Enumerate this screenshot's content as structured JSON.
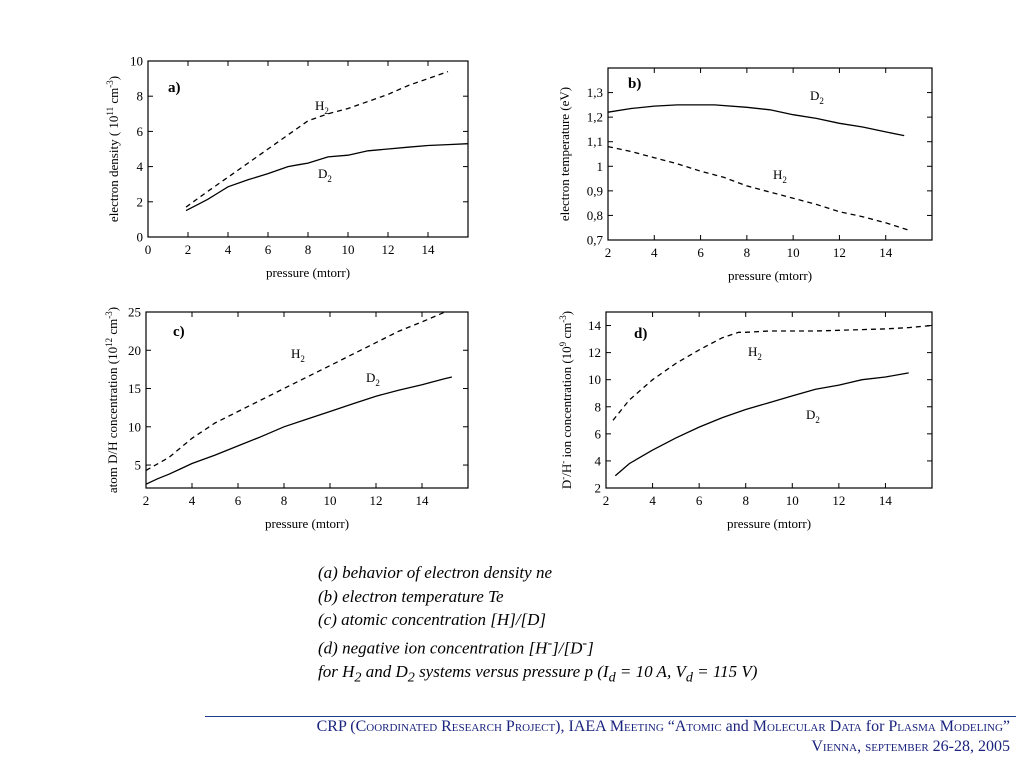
{
  "chart_data": [
    {
      "type": "line",
      "panel_label": "a)",
      "xlabel": "pressure (mtorr)",
      "ylabel": "electron density ( 10 11 cm -3 )",
      "ylabel_parts": {
        "text": "electron density ( 10",
        "exp1": "11",
        "unit": " cm",
        "exp2": "-3",
        "close": ")"
      },
      "xlim": [
        0,
        16
      ],
      "ylim": [
        0,
        10
      ],
      "xticks": [
        0,
        2,
        4,
        6,
        8,
        10,
        12,
        14
      ],
      "yticks": [
        0,
        2,
        4,
        6,
        8,
        10
      ],
      "xtick_labels": [
        "0",
        "2",
        "4",
        "6",
        "8",
        "10",
        "12",
        "14"
      ],
      "ytick_labels": [
        "0",
        "2",
        "4",
        "6",
        "8",
        "10"
      ],
      "grid": false,
      "series": [
        {
          "name": "H2",
          "label_main": "H",
          "label_sub": "2",
          "dash": true,
          "x": [
            1.9,
            3,
            4,
            5,
            6,
            7,
            7.5,
            8,
            9,
            10,
            11,
            12,
            13,
            14,
            15
          ],
          "y": [
            1.7,
            2.6,
            3.4,
            4.2,
            5.0,
            5.8,
            6.2,
            6.6,
            7.0,
            7.3,
            7.7,
            8.1,
            8.6,
            9.0,
            9.4
          ]
        },
        {
          "name": "D2",
          "label_main": "D",
          "label_sub": "2",
          "dash": false,
          "x": [
            1.9,
            2.5,
            3,
            3.5,
            4,
            5,
            6,
            7,
            7.5,
            8,
            9,
            10,
            11,
            12,
            13,
            14,
            15,
            16
          ],
          "y": [
            1.5,
            1.85,
            2.15,
            2.5,
            2.85,
            3.25,
            3.6,
            4.0,
            4.1,
            4.2,
            4.55,
            4.65,
            4.9,
            5.0,
            5.1,
            5.2,
            5.25,
            5.3
          ]
        }
      ]
    },
    {
      "type": "line",
      "panel_label": "b)",
      "xlabel": "pressure (mtorr)",
      "ylabel": "electron temperature (eV)",
      "xlim": [
        2,
        16
      ],
      "ylim": [
        0.7,
        1.4
      ],
      "xticks": [
        2,
        4,
        6,
        8,
        10,
        12,
        14
      ],
      "yticks": [
        0.7,
        0.8,
        0.9,
        1.0,
        1.1,
        1.2,
        1.3
      ],
      "xtick_labels": [
        "2",
        "4",
        "6",
        "8",
        "10",
        "12",
        "14"
      ],
      "ytick_labels": [
        "0,7",
        "0,8",
        "0,9",
        "1",
        "1,1",
        "1,2",
        "1,3"
      ],
      "grid": false,
      "series": [
        {
          "name": "D2",
          "label_main": "D",
          "label_sub": "2",
          "dash": false,
          "x": [
            2,
            3,
            4,
            5,
            6,
            6.6,
            8,
            9,
            10,
            11,
            12,
            13,
            14,
            14.8
          ],
          "y": [
            1.22,
            1.235,
            1.245,
            1.25,
            1.25,
            1.25,
            1.24,
            1.23,
            1.21,
            1.195,
            1.175,
            1.16,
            1.14,
            1.125
          ]
        },
        {
          "name": "H2",
          "label_main": "H",
          "label_sub": "2",
          "dash": true,
          "x": [
            2,
            3,
            4,
            5,
            6,
            7,
            8,
            9,
            10,
            11,
            12,
            13,
            14,
            15
          ],
          "y": [
            1.08,
            1.06,
            1.035,
            1.01,
            0.98,
            0.955,
            0.92,
            0.895,
            0.87,
            0.845,
            0.815,
            0.795,
            0.77,
            0.74
          ]
        }
      ]
    },
    {
      "type": "line",
      "panel_label": "c)",
      "xlabel": "pressure (mtorr)",
      "ylabel": "atom D/H concentration (10 12 cm -3 )",
      "ylabel_parts": {
        "text": "atom D/H concentration (10",
        "exp1": "12",
        "unit": " cm",
        "exp2": "-3",
        "close": ")"
      },
      "xlim": [
        2,
        16
      ],
      "ylim": [
        2,
        25
      ],
      "xticks": [
        2,
        4,
        6,
        8,
        10,
        12,
        14
      ],
      "yticks": [
        5,
        10,
        15,
        20,
        25
      ],
      "xtick_labels": [
        "2",
        "4",
        "6",
        "8",
        "10",
        "12",
        "14"
      ],
      "ytick_labels": [
        "5",
        "10",
        "15",
        "20",
        "25"
      ],
      "grid": false,
      "series": [
        {
          "name": "H2",
          "label_main": "H",
          "label_sub": "2",
          "dash": true,
          "x": [
            2,
            3,
            4,
            5,
            6,
            7,
            8,
            9,
            10,
            11,
            12,
            13,
            14,
            15
          ],
          "y": [
            4.3,
            6.0,
            8.5,
            10.5,
            12.0,
            13.5,
            15.0,
            16.5,
            18.0,
            19.5,
            21.0,
            22.5,
            23.7,
            25.0
          ]
        },
        {
          "name": "D2",
          "label_main": "D",
          "label_sub": "2",
          "dash": false,
          "x": [
            2,
            2.5,
            3,
            3.5,
            4,
            5,
            6,
            7,
            8,
            9,
            10,
            11,
            12,
            13,
            14,
            15,
            15.3
          ],
          "y": [
            2.5,
            3.2,
            3.8,
            4.5,
            5.2,
            6.3,
            7.5,
            8.7,
            10.0,
            11.0,
            12.0,
            13.0,
            14.0,
            14.8,
            15.5,
            16.3,
            16.5
          ]
        }
      ]
    },
    {
      "type": "line",
      "panel_label": "d)",
      "xlabel": "pressure (mtorr)",
      "ylabel": "D -/H - ion concentration (10 9 cm -3 )",
      "ylabel_parts": {
        "pre": "D",
        "sup_a": "-",
        "mid": "/H",
        "sup_b": "-",
        "text": " ion concentration (10",
        "exp1": "9",
        "unit": " cm",
        "exp2": "-3",
        "close": ")"
      },
      "xlim": [
        2,
        16
      ],
      "ylim": [
        2,
        15
      ],
      "xticks": [
        2,
        4,
        6,
        8,
        10,
        12,
        14
      ],
      "yticks": [
        2,
        4,
        6,
        8,
        10,
        12,
        14
      ],
      "xtick_labels": [
        "2",
        "4",
        "6",
        "8",
        "10",
        "12",
        "14"
      ],
      "ytick_labels": [
        "2",
        "4",
        "6",
        "8",
        "10",
        "12",
        "14"
      ],
      "grid": false,
      "series": [
        {
          "name": "H2",
          "label_main": "H",
          "label_sub": "2",
          "dash": true,
          "x": [
            2.3,
            3,
            4,
            5,
            6,
            7,
            7.7,
            8,
            9,
            10,
            11,
            12,
            13,
            14,
            15,
            16
          ],
          "y": [
            7.0,
            8.5,
            10.0,
            11.2,
            12.2,
            13.1,
            13.5,
            13.5,
            13.6,
            13.6,
            13.6,
            13.65,
            13.7,
            13.75,
            13.85,
            14.0
          ]
        },
        {
          "name": "D2",
          "label_main": "D",
          "label_sub": "2",
          "dash": false,
          "x": [
            2.4,
            3,
            4,
            5,
            6,
            7,
            8,
            9,
            10,
            11,
            12,
            13,
            14,
            15
          ],
          "y": [
            2.9,
            3.8,
            4.8,
            5.7,
            6.5,
            7.2,
            7.8,
            8.3,
            8.8,
            9.3,
            9.6,
            10.0,
            10.2,
            10.5
          ]
        }
      ]
    }
  ],
  "caption": {
    "line_a": "(a) behavior of electron density ne",
    "line_b": "(b) electron temperature Te",
    "line_c": "(c) atomic concentration [H]/[D]",
    "line_d_1": "(d) negative ion concentration [H",
    "line_d_sup1": "-",
    "line_d_2": "]/[D",
    "line_d_sup2": "-",
    "line_d_3": "]",
    "line_e_1": "for H",
    "line_e_sub1": "2",
    "line_e_2": " and D",
    "line_e_sub2": "2",
    "line_e_3": " systems versus pressure p (I",
    "line_e_sub3": "d",
    "line_e_4": " = 10 A, V",
    "line_e_sub4": "d",
    "line_e_5": " = 115 V)"
  },
  "footer": {
    "line1_a": "CRP (",
    "line1_b": "Coordinated Research Project",
    "line1_c": "), IAEA ",
    "line1_d": "Meeting “Atomic",
    "line1_e": " and ",
    "line1_f": "Molecular Data",
    "line1_g": " for ",
    "line1_h": "Plasma Modeling”",
    "line2_a": "Vienna, september",
    "line2_b": " 26-28, 2005"
  },
  "colors": {
    "ink": "#000000",
    "footer": "#1a237e",
    "rule": "#1a3a8a"
  }
}
